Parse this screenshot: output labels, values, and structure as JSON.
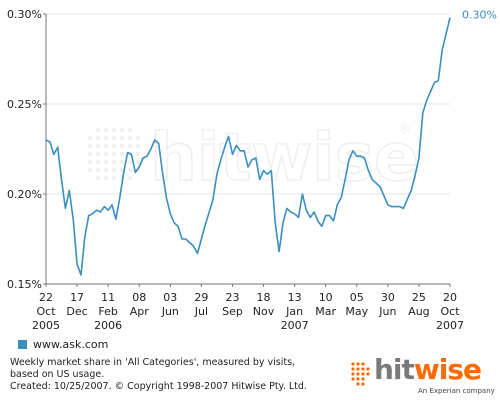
{
  "chart_data": {
    "type": "line",
    "ylim": [
      0.15,
      0.3
    ],
    "yticks": [
      {
        "value": 0.3,
        "label": "0.30%"
      },
      {
        "value": 0.25,
        "label": "0.25%"
      },
      {
        "value": 0.2,
        "label": "0.20%"
      },
      {
        "value": 0.15,
        "label": "0.15%"
      }
    ],
    "xticks": [
      {
        "date": "2005-10-22",
        "day": "22",
        "month": "Oct",
        "year": "2005"
      },
      {
        "date": "2005-12-17",
        "day": "17",
        "month": "Dec",
        "year": ""
      },
      {
        "date": "2006-02-11",
        "day": "11",
        "month": "Feb",
        "year": "2006"
      },
      {
        "date": "2006-04-08",
        "day": "08",
        "month": "Apr",
        "year": ""
      },
      {
        "date": "2006-06-03",
        "day": "03",
        "month": "Jun",
        "year": ""
      },
      {
        "date": "2006-07-29",
        "day": "29",
        "month": "Jul",
        "year": ""
      },
      {
        "date": "2006-09-23",
        "day": "23",
        "month": "Sep",
        "year": ""
      },
      {
        "date": "2006-11-18",
        "day": "18",
        "month": "Nov",
        "year": ""
      },
      {
        "date": "2007-01-13",
        "day": "13",
        "month": "Jan",
        "year": "2007"
      },
      {
        "date": "2007-03-10",
        "day": "10",
        "month": "Mar",
        "year": ""
      },
      {
        "date": "2007-05-05",
        "day": "05",
        "month": "May",
        "year": ""
      },
      {
        "date": "2007-06-30",
        "day": "30",
        "month": "Jun",
        "year": ""
      },
      {
        "date": "2007-08-25",
        "day": "25",
        "month": "Aug",
        "year": ""
      },
      {
        "date": "2007-10-20",
        "day": "20",
        "month": "Oct",
        "year": "2007"
      }
    ],
    "end_label": "0.30%",
    "series": [
      {
        "name": "www.ask.com",
        "color": "#3a8ec0",
        "points": [
          [
            "2005-10-22",
            0.23
          ],
          [
            "2005-10-29",
            0.229
          ],
          [
            "2005-11-05",
            0.222
          ],
          [
            "2005-11-12",
            0.226
          ],
          [
            "2005-11-19",
            0.208
          ],
          [
            "2005-11-26",
            0.192
          ],
          [
            "2005-12-03",
            0.202
          ],
          [
            "2005-12-10",
            0.186
          ],
          [
            "2005-12-17",
            0.161
          ],
          [
            "2005-12-24",
            0.155
          ],
          [
            "2005-12-31",
            0.176
          ],
          [
            "2006-01-07",
            0.188
          ],
          [
            "2006-01-14",
            0.189
          ],
          [
            "2006-01-21",
            0.191
          ],
          [
            "2006-01-28",
            0.19
          ],
          [
            "2006-02-04",
            0.193
          ],
          [
            "2006-02-11",
            0.191
          ],
          [
            "2006-02-18",
            0.194
          ],
          [
            "2006-02-25",
            0.186
          ],
          [
            "2006-03-04",
            0.198
          ],
          [
            "2006-03-11",
            0.212
          ],
          [
            "2006-03-18",
            0.223
          ],
          [
            "2006-03-25",
            0.222
          ],
          [
            "2006-04-01",
            0.212
          ],
          [
            "2006-04-08",
            0.215
          ],
          [
            "2006-04-15",
            0.22
          ],
          [
            "2006-04-22",
            0.221
          ],
          [
            "2006-04-29",
            0.225
          ],
          [
            "2006-05-06",
            0.23
          ],
          [
            "2006-05-13",
            0.228
          ],
          [
            "2006-05-20",
            0.212
          ],
          [
            "2006-05-27",
            0.198
          ],
          [
            "2006-06-03",
            0.189
          ],
          [
            "2006-06-10",
            0.184
          ],
          [
            "2006-06-17",
            0.182
          ],
          [
            "2006-06-24",
            0.175
          ],
          [
            "2006-07-01",
            0.175
          ],
          [
            "2006-07-08",
            0.173
          ],
          [
            "2006-07-15",
            0.171
          ],
          [
            "2006-07-22",
            0.167
          ],
          [
            "2006-07-29",
            0.175
          ],
          [
            "2006-08-05",
            0.183
          ],
          [
            "2006-08-12",
            0.19
          ],
          [
            "2006-08-19",
            0.197
          ],
          [
            "2006-08-26",
            0.211
          ],
          [
            "2006-09-02",
            0.219
          ],
          [
            "2006-09-09",
            0.226
          ],
          [
            "2006-09-16",
            0.232
          ],
          [
            "2006-09-23",
            0.222
          ],
          [
            "2006-09-30",
            0.227
          ],
          [
            "2006-10-07",
            0.224
          ],
          [
            "2006-10-14",
            0.224
          ],
          [
            "2006-10-21",
            0.215
          ],
          [
            "2006-10-28",
            0.219
          ],
          [
            "2006-11-04",
            0.22
          ],
          [
            "2006-11-11",
            0.208
          ],
          [
            "2006-11-18",
            0.213
          ],
          [
            "2006-11-25",
            0.211
          ],
          [
            "2006-12-02",
            0.213
          ],
          [
            "2006-12-09",
            0.184
          ],
          [
            "2006-12-16",
            0.168
          ],
          [
            "2006-12-23",
            0.184
          ],
          [
            "2006-12-30",
            0.192
          ],
          [
            "2007-01-06",
            0.19
          ],
          [
            "2007-01-13",
            0.189
          ],
          [
            "2007-01-20",
            0.187
          ],
          [
            "2007-01-27",
            0.2
          ],
          [
            "2007-02-03",
            0.191
          ],
          [
            "2007-02-10",
            0.187
          ],
          [
            "2007-02-17",
            0.19
          ],
          [
            "2007-02-24",
            0.185
          ],
          [
            "2007-03-03",
            0.182
          ],
          [
            "2007-03-10",
            0.188
          ],
          [
            "2007-03-17",
            0.188
          ],
          [
            "2007-03-24",
            0.185
          ],
          [
            "2007-03-31",
            0.194
          ],
          [
            "2007-04-07",
            0.198
          ],
          [
            "2007-04-14",
            0.208
          ],
          [
            "2007-04-21",
            0.219
          ],
          [
            "2007-04-28",
            0.224
          ],
          [
            "2007-05-05",
            0.221
          ],
          [
            "2007-05-12",
            0.221
          ],
          [
            "2007-05-19",
            0.22
          ],
          [
            "2007-05-26",
            0.213
          ],
          [
            "2007-06-02",
            0.208
          ],
          [
            "2007-06-09",
            0.206
          ],
          [
            "2007-06-16",
            0.204
          ],
          [
            "2007-06-23",
            0.199
          ],
          [
            "2007-06-30",
            0.194
          ],
          [
            "2007-07-07",
            0.193
          ],
          [
            "2007-07-14",
            0.193
          ],
          [
            "2007-07-21",
            0.193
          ],
          [
            "2007-07-28",
            0.192
          ],
          [
            "2007-08-04",
            0.197
          ],
          [
            "2007-08-11",
            0.202
          ],
          [
            "2007-08-18",
            0.21
          ],
          [
            "2007-08-25",
            0.22
          ],
          [
            "2007-09-01",
            0.245
          ],
          [
            "2007-09-08",
            0.252
          ],
          [
            "2007-09-15",
            0.257
          ],
          [
            "2007-09-22",
            0.262
          ],
          [
            "2007-09-29",
            0.263
          ],
          [
            "2007-10-06",
            0.28
          ],
          [
            "2007-10-13",
            0.289
          ],
          [
            "2007-10-20",
            0.298
          ]
        ]
      }
    ],
    "grid": "horizontal",
    "legend_position": "bottom-left"
  },
  "watermark": {
    "text": "hitwise",
    "symbol": "®"
  },
  "footer": {
    "line1": "Weekly market share in 'All Categories', measured by visits,",
    "line2": "based on US usage.",
    "line3": "Created: 10/25/2007. © Copyright 1998-2007 Hitwise Pty. Ltd."
  },
  "brand": {
    "hit": "hit",
    "wise": "wise",
    "tagline": "An Experian company",
    "accent": "#ff6a00",
    "gray": "#7a7a7a"
  }
}
